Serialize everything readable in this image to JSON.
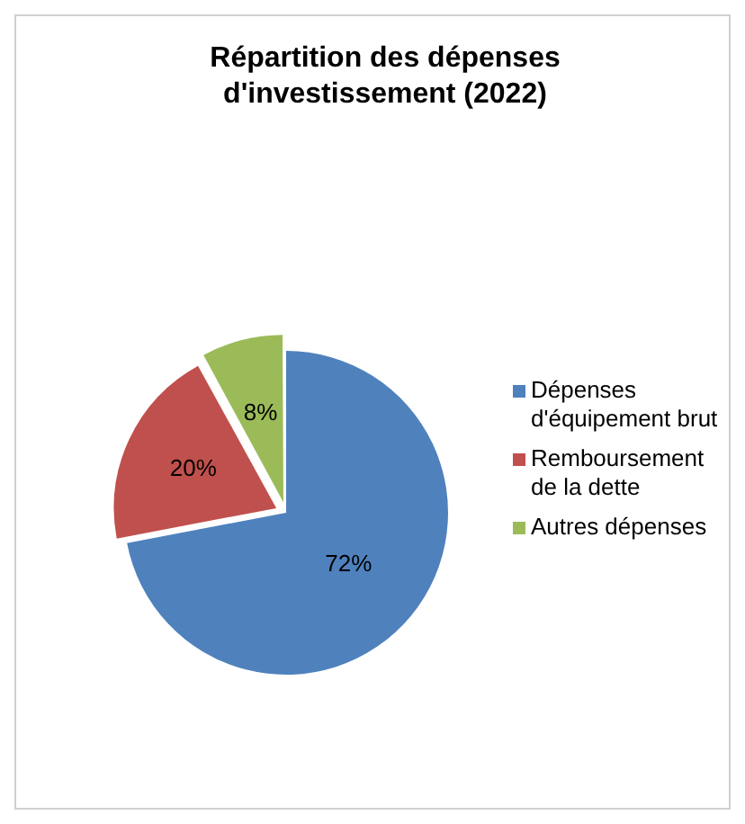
{
  "chart_data": {
    "type": "pie",
    "title": "Répartition des dépenses d'investissement (2022)",
    "categories": [
      "Dépenses d'équipement brut",
      "Remboursement de la dette",
      "Autres dépenses"
    ],
    "values": [
      72,
      20,
      8
    ],
    "colors": [
      "#4f81bd",
      "#c0504d",
      "#9bbb59"
    ],
    "value_labels": [
      "72%",
      "20%",
      "8%"
    ],
    "legend": "right"
  }
}
